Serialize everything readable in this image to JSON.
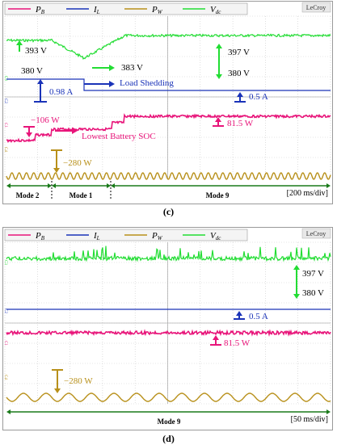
{
  "colors": {
    "pb": "#e8157a",
    "il": "#1a33b8",
    "pw": "#b8901a",
    "vdc": "#22dd33",
    "grid": "#c9c9c9",
    "arrow_mode": "#1a7a1a"
  },
  "panels": [
    {
      "caption": "(c)",
      "logo": "LeCroy",
      "legend": [
        {
          "key": "pb",
          "label": "P",
          "sub": "B"
        },
        {
          "key": "il",
          "label": "I",
          "sub": "L"
        },
        {
          "key": "pw",
          "label": "P",
          "sub": "W"
        },
        {
          "key": "vdc",
          "label": "V",
          "sub": "dc"
        }
      ],
      "channel_markers": [
        "C3",
        "C2",
        "C1",
        "C4"
      ],
      "timebase": "[200 ms/div]",
      "modes": [
        "Mode 2",
        "Mode 1",
        "Mode 9"
      ],
      "annotations": {
        "v393": "393 V",
        "v380": "380 V",
        "v383": "383 V",
        "v397": "397 V",
        "v380b": "380 V",
        "i098": "0.98 A",
        "load_shed": "Load Shedding",
        "i05": "0.5 A",
        "pb106": "−106 W",
        "pb815": "81.5 W",
        "lowest_soc": "Lowest Battery SOC",
        "pw280": "−280 W"
      }
    },
    {
      "caption": "(d)",
      "logo": "LeCroy",
      "legend": [
        {
          "key": "pb",
          "label": "P",
          "sub": "B"
        },
        {
          "key": "il",
          "label": "I",
          "sub": "L"
        },
        {
          "key": "pw",
          "label": "P",
          "sub": "W"
        },
        {
          "key": "vdc",
          "label": "V",
          "sub": "dc"
        }
      ],
      "channel_markers": [
        "C3",
        "C2",
        "C1",
        "C4"
      ],
      "timebase": "[50 ms/div]",
      "modes": [
        "Mode 9"
      ],
      "annotations": {
        "v397": "397 V",
        "v380": "380 V",
        "i05": "0.5 A",
        "pb815": "81.5 W",
        "pw280": "−280 W"
      }
    }
  ],
  "chart_data": [
    {
      "type": "line",
      "timebase": "200 ms/div",
      "divisions_x": 10,
      "series": [
        {
          "name": "P_B",
          "levels_W": {
            "mode2": -106,
            "mode1": -106,
            "mode9": 81.5
          }
        },
        {
          "name": "I_L",
          "levels_A": {
            "mode2": 0.98,
            "mode9": 0.5
          }
        },
        {
          "name": "P_W",
          "mean_W": -280,
          "ripple": true
        },
        {
          "name": "V_dc",
          "values_V": {
            "mode2": 393,
            "mode1_min": 383,
            "mode9_max": 397,
            "mode9_min": 380
          }
        }
      ],
      "modes": [
        "Mode 2",
        "Mode 1",
        "Mode 9"
      ]
    },
    {
      "type": "line",
      "timebase": "50 ms/div",
      "divisions_x": 10,
      "series": [
        {
          "name": "P_B",
          "level_W": 81.5
        },
        {
          "name": "I_L",
          "level_A": 0.5
        },
        {
          "name": "P_W",
          "mean_W": -280,
          "ripple": true
        },
        {
          "name": "V_dc",
          "max_V": 397,
          "min_V": 380
        }
      ],
      "modes": [
        "Mode 9"
      ]
    }
  ]
}
